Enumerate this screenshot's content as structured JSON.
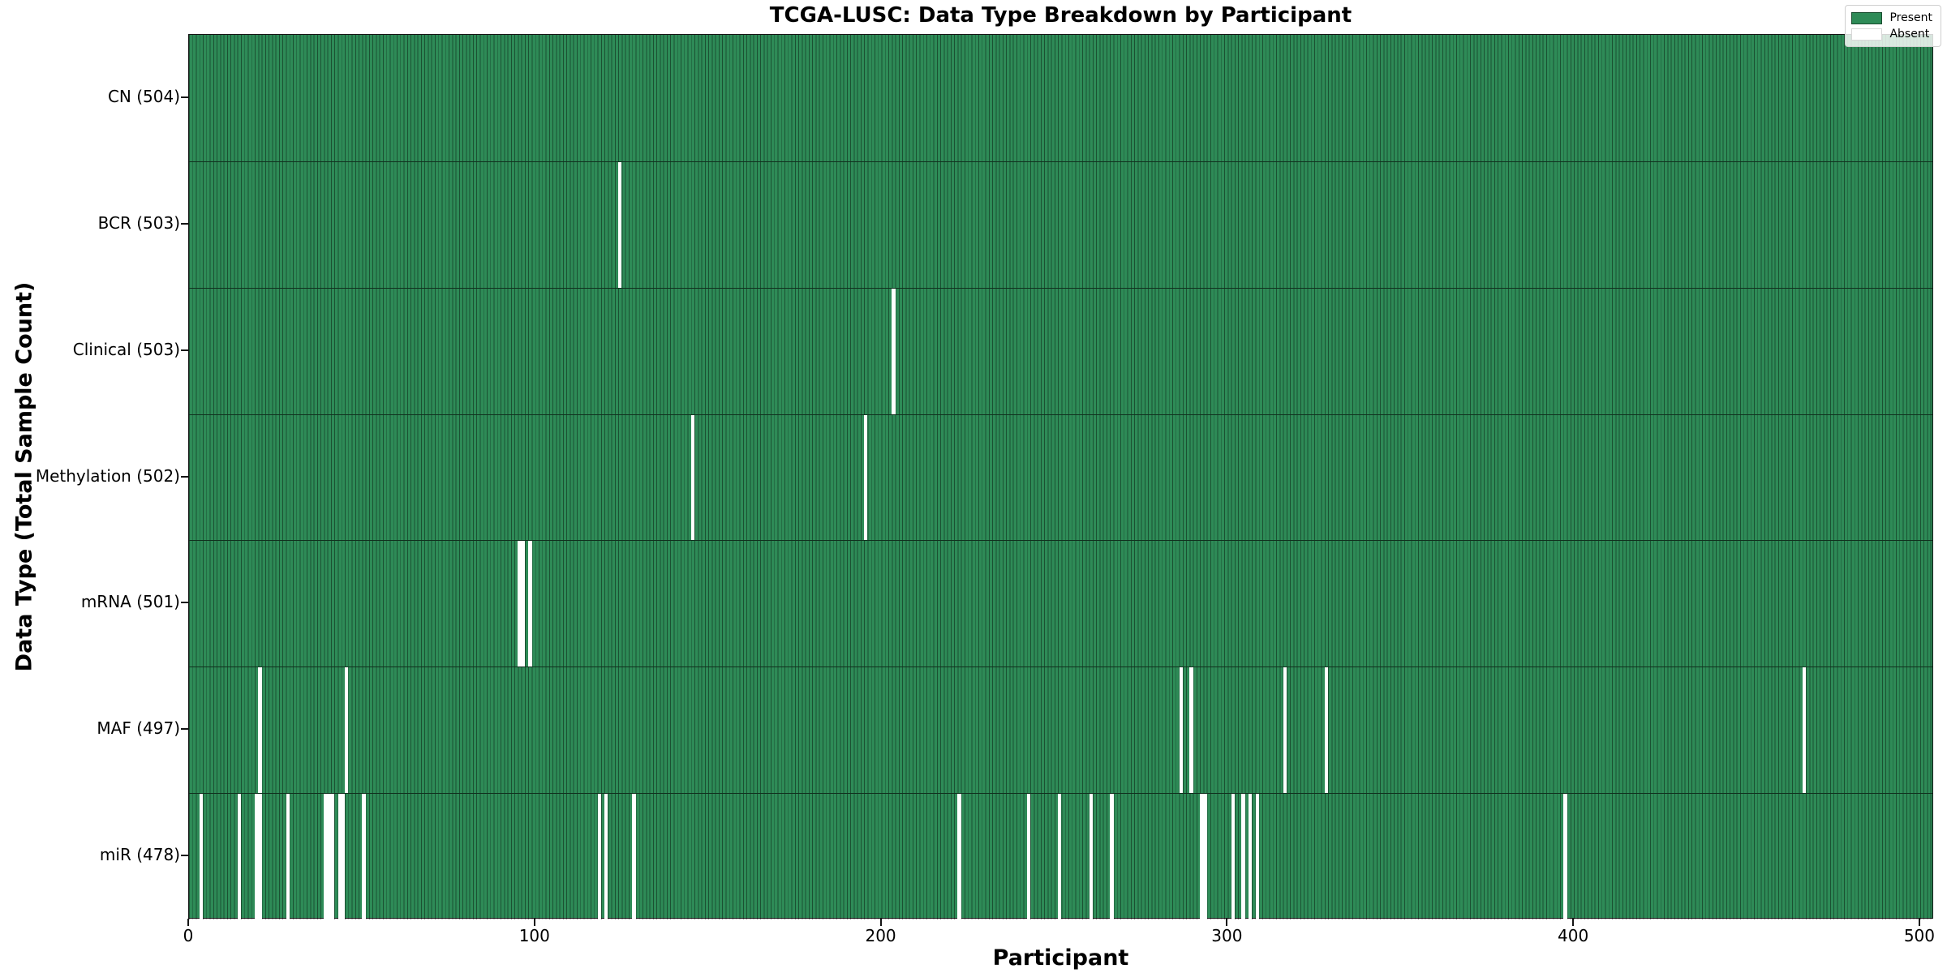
{
  "title": "TCGA-LUSC: Data Type Breakdown by Participant",
  "xlabel": "Participant",
  "ylabel": "Data Type (Total Sample Count)",
  "legend": {
    "present_label": "Present",
    "absent_label": "Absent"
  },
  "colors": {
    "present": "#2e8b57",
    "absent": "#ffffff",
    "cell_edge": "rgba(0,0,0,0.42)",
    "row_divider": "rgba(0,0,0,0.65)"
  },
  "chart_data": {
    "type": "heatmap",
    "title": "TCGA-LUSC: Data Type Breakdown by Participant",
    "xlabel": "Participant",
    "ylabel": "Data Type (Total Sample Count)",
    "legend_entries": [
      "Present",
      "Absent"
    ],
    "legend_position": "upper right",
    "n_participants": 504,
    "xlim": [
      0,
      504
    ],
    "x_ticks": [
      0,
      100,
      200,
      300,
      400,
      500
    ],
    "grid": false,
    "rows": [
      {
        "label": "CN (504)",
        "data_type": "CN",
        "present_count": 504,
        "absent_participants": []
      },
      {
        "label": "BCR (503)",
        "data_type": "BCR",
        "present_count": 503,
        "absent_participants": [
          124
        ]
      },
      {
        "label": "Clinical (503)",
        "data_type": "Clinical",
        "present_count": 503,
        "absent_participants": [
          203
        ]
      },
      {
        "label": "Methylation (502)",
        "data_type": "Methylation",
        "present_count": 502,
        "absent_participants": [
          145,
          195
        ]
      },
      {
        "label": "mRNA (501)",
        "data_type": "mRNA",
        "present_count": 501,
        "absent_participants": [
          95,
          96,
          98
        ]
      },
      {
        "label": "MAF (497)",
        "data_type": "MAF",
        "present_count": 497,
        "absent_participants": [
          20,
          45,
          286,
          289,
          316,
          328,
          466
        ]
      },
      {
        "label": "miR (478)",
        "data_type": "miR",
        "present_count": 478,
        "absent_participants": [
          3,
          14,
          19,
          20,
          28,
          39,
          40,
          41,
          43,
          44,
          50,
          118,
          120,
          128,
          222,
          242,
          251,
          260,
          266,
          292,
          293,
          301,
          304,
          306,
          308,
          397
        ]
      }
    ]
  }
}
